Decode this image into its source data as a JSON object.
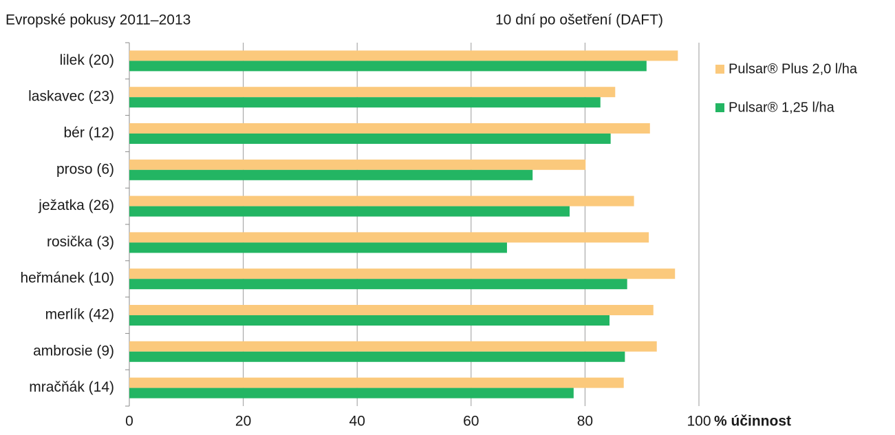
{
  "chart_data": {
    "type": "hbar",
    "title": "Evropské pokusy 2011–2013",
    "subtitle": "10 dní po ošetření (DAFT)",
    "x_label": "% účinnost",
    "categories": [
      "lilek (20)",
      "laskavec (23)",
      "bér (12)",
      "proso (6)",
      "ježatka (26)",
      "rosička (3)",
      "heřmánek (10)",
      "merlík (42)",
      "ambrosie (9)",
      "mračňák (14)"
    ],
    "series": [
      {
        "name": "Pulsar® Plus 2,0 l/ha",
        "color": "#fbc97c",
        "values": [
          96.3,
          85.3,
          91.4,
          80.1,
          88.6,
          91.2,
          95.8,
          92.0,
          92.6,
          86.8
        ]
      },
      {
        "name": "Pulsar® 1,25 l/ha",
        "color": "#23b563",
        "values": [
          90.8,
          82.7,
          84.5,
          70.8,
          77.3,
          66.3,
          87.4,
          84.3,
          87.0,
          78.0
        ]
      }
    ],
    "xlim": [
      0,
      100
    ],
    "xticks": [
      0,
      20,
      40,
      60,
      80,
      100
    ],
    "grid": true,
    "legend": "right"
  }
}
